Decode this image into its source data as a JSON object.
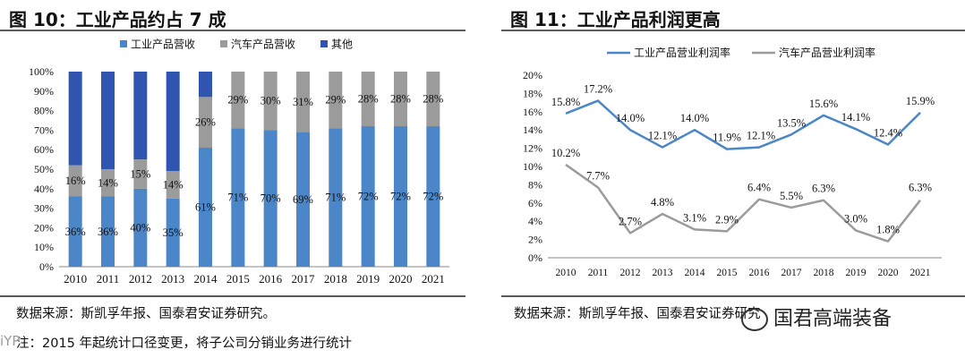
{
  "left": {
    "title": "图 10：工业产品约占 7 成",
    "source": "数据来源：斯凯孚年报、国泰君安证券研究。",
    "note": "注：2015 年起统计口径变更，将子公司分销业务进行统计"
  },
  "right": {
    "title": "图 11：工业产品利润更高",
    "source": "数据来源：斯凯孚年报、国泰君安证券研究"
  },
  "watermark": {
    "text": "国君高端装备"
  },
  "corner_mark": "iYP",
  "colors": {
    "industrial": "#4a86c8",
    "auto": "#9b9b9b",
    "other": "#2f55b0",
    "axis": "#888888",
    "grid": "#e6e6e6"
  },
  "chart_data": [
    {
      "type": "bar",
      "stacked": true,
      "title": "工业产品约占 7 成",
      "categories": [
        "2010",
        "2011",
        "2012",
        "2013",
        "2014",
        "2015",
        "2016",
        "2017",
        "2018",
        "2019",
        "2020",
        "2021"
      ],
      "series": [
        {
          "name": "工业产品营收",
          "values": [
            36,
            36,
            40,
            35,
            61,
            71,
            70,
            69,
            71,
            72,
            72,
            72
          ],
          "labels": [
            "36%",
            "36%",
            "40%",
            "35%",
            "61%",
            "71%",
            "70%",
            "69%",
            "71%",
            "72%",
            "72%",
            "72%"
          ]
        },
        {
          "name": "汽车产品营收",
          "values": [
            16,
            14,
            15,
            14,
            26,
            29,
            30,
            31,
            29,
            28,
            28,
            28
          ],
          "labels": [
            "16%",
            "14%",
            "15%",
            "14%",
            "26%",
            "29%",
            "30%",
            "31%",
            "29%",
            "28%",
            "28%",
            "28%"
          ]
        },
        {
          "name": "其他",
          "values": [
            48,
            50,
            45,
            51,
            13,
            0,
            0,
            0,
            0,
            0,
            0,
            0
          ]
        }
      ],
      "ylim": [
        0,
        100
      ],
      "yticks": [
        "0%",
        "10%",
        "20%",
        "30%",
        "40%",
        "50%",
        "60%",
        "70%",
        "80%",
        "90%",
        "100%"
      ],
      "legend_position": "top"
    },
    {
      "type": "line",
      "title": "工业产品利润更高",
      "categories": [
        "2010",
        "2011",
        "2012",
        "2013",
        "2014",
        "2015",
        "2016",
        "2017",
        "2018",
        "2019",
        "2020",
        "2021"
      ],
      "series": [
        {
          "name": "工业产品营业利润率",
          "values": [
            15.8,
            17.2,
            14.0,
            12.1,
            14.0,
            11.9,
            12.1,
            13.5,
            15.6,
            14.1,
            12.4,
            15.9
          ],
          "labels": [
            "15.8%",
            "17.2%",
            "14.0%",
            "12.1%",
            "14.0%",
            "11.9%",
            "12.1%",
            "13.5%",
            "15.6%",
            "14.1%",
            "12.4%",
            "15.9%"
          ]
        },
        {
          "name": "汽车产品营业利润率",
          "values": [
            10.2,
            7.7,
            2.7,
            4.8,
            3.1,
            2.9,
            6.4,
            5.5,
            6.3,
            3.0,
            1.8,
            6.3
          ],
          "labels": [
            "10.2%",
            "7.7%",
            "2.7%",
            "4.8%",
            "3.1%",
            "2.9%",
            "6.4%",
            "5.5%",
            "6.3%",
            "3.0%",
            "1.8%",
            "6.3%"
          ]
        }
      ],
      "ylim": [
        0,
        20
      ],
      "yticks": [
        "0%",
        "2%",
        "4%",
        "6%",
        "8%",
        "10%",
        "12%",
        "14%",
        "16%",
        "18%",
        "20%"
      ],
      "legend_position": "top"
    }
  ]
}
